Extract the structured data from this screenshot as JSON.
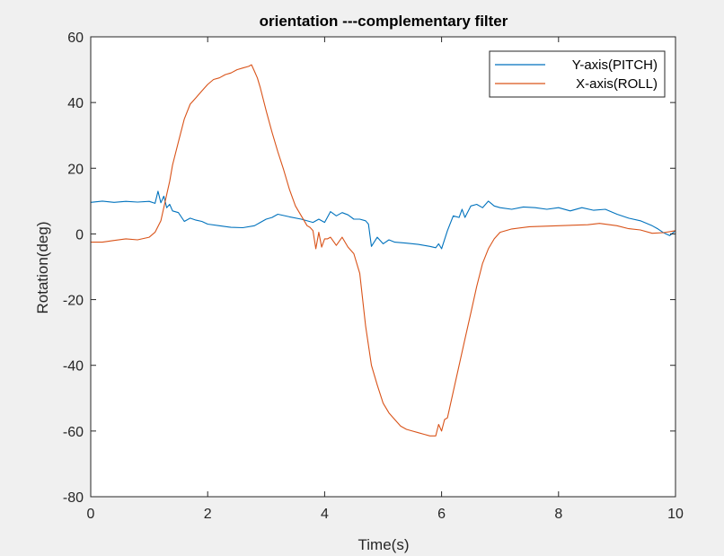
{
  "chart_data": {
    "type": "line",
    "title": "orientation ---complementary filter",
    "xlabel": "Time(s)",
    "ylabel": "Rotation(deg)",
    "xlim": [
      0,
      10
    ],
    "ylim": [
      -80,
      60
    ],
    "xticks": [
      0,
      2,
      4,
      6,
      8,
      10
    ],
    "yticks": [
      -80,
      -60,
      -40,
      -20,
      0,
      20,
      40,
      60
    ],
    "grid": false,
    "legend_position": "top-right",
    "series": [
      {
        "name": "Y-axis(PITCH)",
        "color": "#0072bd",
        "x": [
          0,
          0.2,
          0.4,
          0.6,
          0.8,
          1.0,
          1.1,
          1.15,
          1.2,
          1.25,
          1.3,
          1.35,
          1.4,
          1.5,
          1.6,
          1.7,
          1.8,
          1.9,
          2.0,
          2.2,
          2.4,
          2.6,
          2.8,
          2.9,
          3.0,
          3.1,
          3.2,
          3.4,
          3.6,
          3.8,
          3.9,
          4.0,
          4.1,
          4.2,
          4.3,
          4.4,
          4.5,
          4.6,
          4.7,
          4.75,
          4.8,
          4.9,
          5.0,
          5.1,
          5.2,
          5.4,
          5.6,
          5.8,
          5.9,
          5.95,
          6.0,
          6.1,
          6.2,
          6.3,
          6.35,
          6.4,
          6.5,
          6.6,
          6.7,
          6.8,
          6.9,
          7.0,
          7.2,
          7.4,
          7.6,
          7.8,
          8.0,
          8.2,
          8.4,
          8.6,
          8.8,
          9.0,
          9.2,
          9.4,
          9.6,
          9.7,
          9.8,
          9.9,
          10.0
        ],
        "y": [
          9.6,
          10.0,
          9.6,
          9.9,
          9.7,
          9.9,
          9.3,
          13.0,
          9.5,
          11.5,
          8.0,
          9.0,
          7.0,
          6.5,
          3.8,
          4.8,
          4.2,
          3.8,
          3.0,
          2.5,
          2.0,
          1.9,
          2.5,
          3.5,
          4.5,
          5.0,
          6.0,
          5.2,
          4.5,
          3.5,
          4.5,
          3.5,
          6.8,
          5.5,
          6.5,
          5.8,
          4.5,
          4.5,
          4.0,
          3.0,
          -3.8,
          -1.0,
          -3.0,
          -1.8,
          -2.5,
          -2.8,
          -3.2,
          -3.8,
          -4.2,
          -3.0,
          -4.5,
          1.0,
          5.5,
          5.0,
          7.5,
          5.0,
          8.5,
          9.0,
          8.0,
          10.0,
          8.5,
          8.0,
          7.5,
          8.2,
          8.0,
          7.5,
          8.0,
          7.0,
          8.0,
          7.2,
          7.5,
          6.0,
          4.8,
          4.0,
          2.5,
          1.5,
          0.3,
          -0.5,
          1.0
        ]
      },
      {
        "name": "X-axis(ROLL)",
        "color": "#d95319",
        "x": [
          0,
          0.2,
          0.4,
          0.6,
          0.8,
          1.0,
          1.1,
          1.2,
          1.3,
          1.35,
          1.4,
          1.5,
          1.6,
          1.7,
          1.8,
          1.9,
          2.0,
          2.1,
          2.2,
          2.3,
          2.4,
          2.5,
          2.6,
          2.7,
          2.75,
          2.8,
          2.85,
          2.9,
          3.0,
          3.1,
          3.2,
          3.3,
          3.4,
          3.5,
          3.6,
          3.7,
          3.75,
          3.8,
          3.85,
          3.9,
          3.95,
          4.0,
          4.05,
          4.1,
          4.2,
          4.3,
          4.4,
          4.5,
          4.6,
          4.7,
          4.8,
          4.9,
          5.0,
          5.1,
          5.2,
          5.3,
          5.4,
          5.5,
          5.6,
          5.7,
          5.8,
          5.9,
          5.95,
          6.0,
          6.05,
          6.1,
          6.2,
          6.3,
          6.4,
          6.5,
          6.6,
          6.7,
          6.8,
          6.9,
          7.0,
          7.2,
          7.5,
          8.0,
          8.5,
          8.7,
          9.0,
          9.2,
          9.4,
          9.6,
          9.8,
          10.0
        ],
        "y": [
          -2.5,
          -2.5,
          -2.0,
          -1.5,
          -1.8,
          -1.0,
          0.5,
          4.0,
          12.0,
          16.0,
          21.0,
          28.0,
          35.0,
          39.5,
          41.5,
          43.5,
          45.5,
          47.0,
          47.5,
          48.5,
          49.0,
          50.0,
          50.5,
          51.0,
          51.5,
          49.5,
          47.5,
          44.5,
          37.5,
          31.0,
          25.0,
          19.5,
          13.5,
          8.5,
          5.5,
          2.5,
          2.0,
          1.0,
          -4.5,
          0.5,
          -4.0,
          -1.5,
          -1.5,
          -1.0,
          -3.5,
          -1.0,
          -4.0,
          -6.0,
          -12.0,
          -28.0,
          -40.0,
          -46.0,
          -51.5,
          -54.5,
          -56.5,
          -58.5,
          -59.5,
          -60.0,
          -60.5,
          -61.0,
          -61.5,
          -61.5,
          -58.0,
          -60.0,
          -56.5,
          -56.0,
          -48.0,
          -40.0,
          -32.0,
          -24.0,
          -16.0,
          -9.0,
          -4.5,
          -1.5,
          0.5,
          1.5,
          2.2,
          2.5,
          2.8,
          3.2,
          2.5,
          1.6,
          1.2,
          0.2,
          0.4,
          1.0
        ]
      }
    ]
  }
}
